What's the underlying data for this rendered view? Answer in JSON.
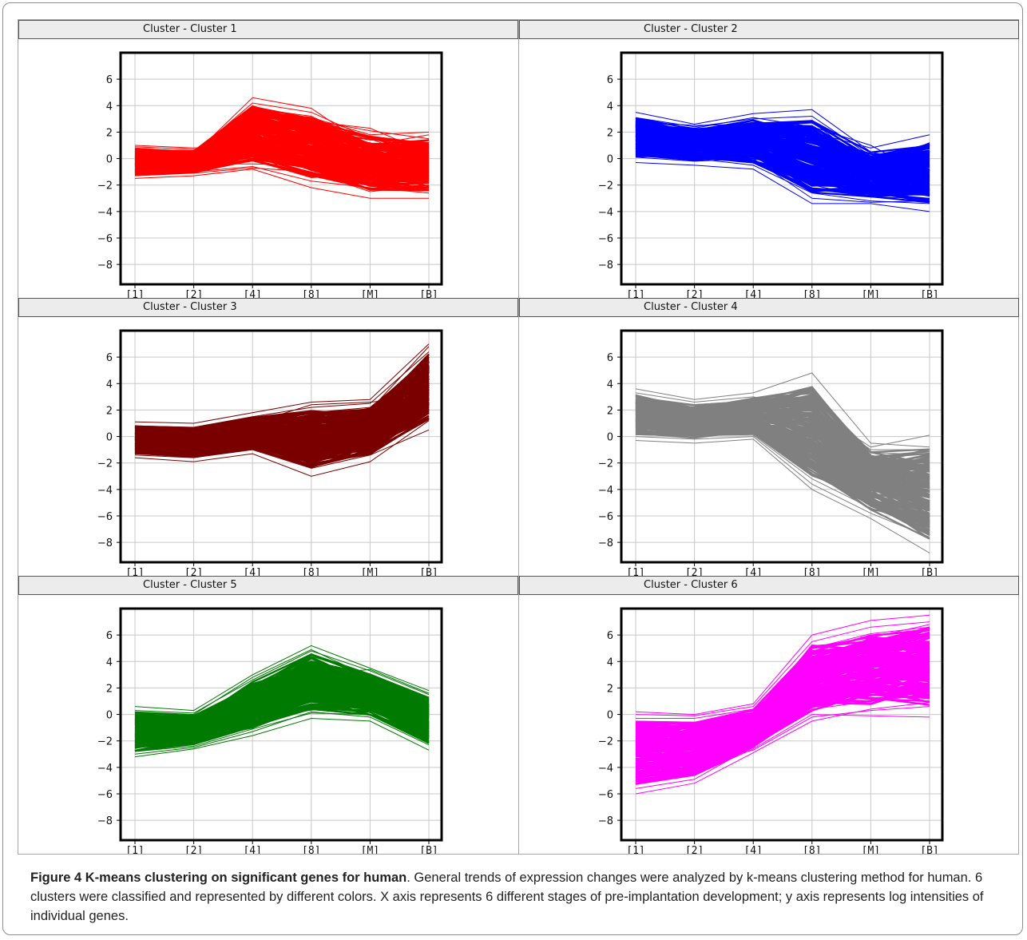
{
  "figure": {
    "caption_title": "Figure 4 K-means clustering on significant genes for human",
    "caption_text": ". General trends of expression changes were analyzed by k-means clustering method for human. 6 clusters were classified and represented by different colors. X axis represents 6 different stages of pre-implantation development; y axis represents log intensities of individual genes."
  },
  "chart_data": [
    {
      "type": "line",
      "title": "Cluster - Cluster 1",
      "color": "#ff0000",
      "x": [
        "[1]",
        "[2]",
        "[4]",
        "[8]",
        "[M]",
        "[B]"
      ],
      "ylim": [
        -9.5,
        8
      ],
      "yticks": [
        6,
        4,
        2,
        0,
        -2,
        -4,
        -6,
        -8
      ],
      "grid": true,
      "series_band": {
        "min": [
          -1.5,
          -1.3,
          -0.8,
          -2.2,
          -3.0,
          -3.0
        ],
        "max": [
          1.0,
          0.8,
          4.6,
          3.8,
          2.3,
          2.0
        ]
      },
      "series": [
        {
          "values": [
            0.5,
            0.3,
            4.6,
            3.8,
            0.8,
            0.2
          ]
        },
        {
          "values": [
            0.2,
            0.4,
            4.2,
            3.5,
            1.5,
            -0.2
          ]
        },
        {
          "values": [
            0.8,
            0.5,
            3.8,
            3.2,
            1.1,
            0.6
          ]
        },
        {
          "values": [
            -0.5,
            0.1,
            3.3,
            2.8,
            2.3,
            0.4
          ]
        },
        {
          "values": [
            0.0,
            0.2,
            3.0,
            3.1,
            1.8,
            2.0
          ]
        },
        {
          "values": [
            -1.0,
            -0.5,
            2.4,
            2.6,
            0.2,
            -0.8
          ]
        },
        {
          "values": [
            0.3,
            0.6,
            2.2,
            2.4,
            0.9,
            0.5
          ]
        },
        {
          "values": [
            -0.4,
            -0.2,
            1.9,
            2.1,
            -0.5,
            0.3
          ]
        },
        {
          "values": [
            0.6,
            0.4,
            1.6,
            1.8,
            1.2,
            -0.4
          ]
        },
        {
          "values": [
            -0.8,
            -0.6,
            1.2,
            1.4,
            -1.0,
            0.7
          ]
        },
        {
          "values": [
            0.1,
            0.0,
            0.8,
            1.0,
            0.4,
            -0.1
          ]
        },
        {
          "values": [
            -1.2,
            -0.9,
            0.4,
            0.7,
            -1.6,
            -1.2
          ]
        },
        {
          "values": [
            0.4,
            0.2,
            0.0,
            0.2,
            0.6,
            0.9
          ]
        },
        {
          "values": [
            -0.6,
            -0.4,
            -0.4,
            -0.5,
            -0.2,
            -0.6
          ]
        },
        {
          "values": [
            -1.5,
            -1.3,
            -0.8,
            -2.2,
            -3.0,
            -3.0
          ]
        },
        {
          "values": [
            -1.1,
            -1.0,
            -0.6,
            -1.7,
            -2.2,
            -2.6
          ]
        },
        {
          "values": [
            0.9,
            0.7,
            1.4,
            2.9,
            2.1,
            1.5
          ]
        },
        {
          "values": [
            -0.2,
            0.1,
            2.7,
            1.6,
            -1.3,
            -1.6
          ]
        },
        {
          "values": [
            1.0,
            0.8,
            1.0,
            0.5,
            1.0,
            1.8
          ]
        },
        {
          "values": [
            -1.3,
            -1.1,
            -0.7,
            -1.0,
            -2.5,
            -2.0
          ]
        }
      ]
    },
    {
      "type": "line",
      "title": "Cluster - Cluster 2",
      "color": "#0000ff",
      "x": [
        "[1]",
        "[2]",
        "[4]",
        "[8]",
        "[M]",
        "[B]"
      ],
      "ylim": [
        -9.5,
        8
      ],
      "yticks": [
        6,
        4,
        2,
        0,
        -2,
        -4,
        -6,
        -8
      ],
      "grid": true,
      "series_band": {
        "min": [
          -0.3,
          -0.5,
          -0.8,
          -3.4,
          -3.4,
          -4.0
        ],
        "max": [
          3.5,
          2.6,
          3.4,
          3.7,
          1.0,
          1.8
        ]
      },
      "series": [
        {
          "values": [
            3.5,
            2.6,
            3.4,
            3.7,
            0.5,
            -0.5
          ]
        },
        {
          "values": [
            3.1,
            2.4,
            3.0,
            3.2,
            0.2,
            0.8
          ]
        },
        {
          "values": [
            2.8,
            2.5,
            2.6,
            2.8,
            -0.6,
            1.2
          ]
        },
        {
          "values": [
            2.5,
            2.2,
            2.2,
            2.0,
            0.8,
            1.8
          ]
        },
        {
          "values": [
            2.2,
            2.0,
            1.8,
            1.4,
            -0.2,
            0.4
          ]
        },
        {
          "values": [
            2.0,
            1.7,
            2.4,
            1.0,
            -1.0,
            -0.6
          ]
        },
        {
          "values": [
            1.7,
            1.5,
            1.4,
            0.4,
            -1.4,
            -1.2
          ]
        },
        {
          "values": [
            1.4,
            1.2,
            1.0,
            -0.2,
            -1.8,
            -1.6
          ]
        },
        {
          "values": [
            1.1,
            0.9,
            0.6,
            -0.8,
            -2.2,
            -2.0
          ]
        },
        {
          "values": [
            0.8,
            0.6,
            0.2,
            -1.4,
            -2.6,
            -2.6
          ]
        },
        {
          "values": [
            0.5,
            0.3,
            -0.2,
            -2.0,
            -2.9,
            -3.0
          ]
        },
        {
          "values": [
            0.2,
            0.0,
            -0.5,
            -2.6,
            -3.2,
            -3.4
          ]
        },
        {
          "values": [
            -0.3,
            -0.5,
            -0.8,
            -3.4,
            -3.4,
            -4.0
          ]
        },
        {
          "values": [
            2.9,
            2.3,
            3.1,
            2.4,
            1.0,
            -1.4
          ]
        },
        {
          "values": [
            1.5,
            1.4,
            1.6,
            -1.2,
            -0.8,
            0.2
          ]
        },
        {
          "values": [
            0.1,
            -0.2,
            0.0,
            -3.0,
            -3.3,
            -3.2
          ]
        },
        {
          "values": [
            2.6,
            2.1,
            2.0,
            -0.4,
            -2.0,
            -0.8
          ]
        },
        {
          "values": [
            1.2,
            0.8,
            0.4,
            -1.8,
            -1.2,
            0.9
          ]
        }
      ]
    },
    {
      "type": "line",
      "title": "Cluster - Cluster 3",
      "color": "#7a0000",
      "x": [
        "[1]",
        "[2]",
        "[4]",
        "[8]",
        "[M]",
        "[B]"
      ],
      "ylim": [
        -9.5,
        8
      ],
      "yticks": [
        6,
        4,
        2,
        0,
        -2,
        -4,
        -6,
        -8
      ],
      "grid": true,
      "series_band": {
        "min": [
          -1.6,
          -1.9,
          -1.3,
          -3.0,
          -1.9,
          0.5
        ],
        "max": [
          1.1,
          1.0,
          1.8,
          2.6,
          2.8,
          7.0
        ]
      },
      "series": [
        {
          "values": [
            1.1,
            1.0,
            1.8,
            2.6,
            2.8,
            7.0
          ]
        },
        {
          "values": [
            0.8,
            0.7,
            1.5,
            2.2,
            2.5,
            6.4
          ]
        },
        {
          "values": [
            0.5,
            0.5,
            1.2,
            1.8,
            2.2,
            5.8
          ]
        },
        {
          "values": [
            0.2,
            0.2,
            0.9,
            1.4,
            1.9,
            5.2
          ]
        },
        {
          "values": [
            -0.1,
            0.0,
            0.6,
            1.0,
            1.6,
            4.6
          ]
        },
        {
          "values": [
            -0.4,
            -0.3,
            0.3,
            0.6,
            1.3,
            4.0
          ]
        },
        {
          "values": [
            -0.7,
            -0.6,
            0.0,
            0.2,
            1.0,
            3.4
          ]
        },
        {
          "values": [
            -1.0,
            -0.9,
            -0.3,
            -0.4,
            0.6,
            2.8
          ]
        },
        {
          "values": [
            -1.3,
            -1.3,
            -0.7,
            -1.2,
            0.2,
            2.0
          ]
        },
        {
          "values": [
            -1.6,
            -1.9,
            -1.3,
            -3.0,
            -1.9,
            1.2
          ]
        },
        {
          "values": [
            -1.4,
            -1.6,
            -1.0,
            -2.4,
            -1.4,
            0.5
          ]
        },
        {
          "values": [
            0.0,
            0.3,
            1.0,
            2.4,
            2.6,
            3.0
          ]
        },
        {
          "values": [
            0.6,
            0.4,
            0.0,
            -1.0,
            -1.0,
            5.6
          ]
        },
        {
          "values": [
            -0.8,
            -0.5,
            1.4,
            0.8,
            2.0,
            6.8
          ]
        }
      ]
    },
    {
      "type": "line",
      "title": "Cluster - Cluster 4",
      "color": "#808080",
      "x": [
        "[1]",
        "[2]",
        "[4]",
        "[8]",
        "[M]",
        "[B]"
      ],
      "ylim": [
        -9.5,
        8
      ],
      "yticks": [
        6,
        4,
        2,
        0,
        -2,
        -4,
        -6,
        -8
      ],
      "grid": true,
      "series_band": {
        "min": [
          -0.3,
          -0.5,
          -0.2,
          -4.0,
          -6.2,
          -8.8
        ],
        "max": [
          3.6,
          2.8,
          3.3,
          4.8,
          -0.5,
          0.1
        ]
      },
      "series": [
        {
          "values": [
            3.6,
            2.8,
            3.3,
            4.8,
            -0.5,
            -0.8
          ]
        },
        {
          "values": [
            3.3,
            2.6,
            3.0,
            2.1,
            -0.8,
            0.1
          ]
        },
        {
          "values": [
            3.0,
            2.4,
            2.7,
            1.4,
            -1.2,
            -1.4
          ]
        },
        {
          "values": [
            2.6,
            2.1,
            2.4,
            0.6,
            -1.8,
            -2.2
          ]
        },
        {
          "values": [
            2.2,
            1.8,
            2.0,
            -0.2,
            -2.4,
            -3.0
          ]
        },
        {
          "values": [
            1.8,
            1.5,
            1.6,
            -0.8,
            -3.0,
            -3.8
          ]
        },
        {
          "values": [
            1.4,
            1.2,
            1.2,
            -1.4,
            -3.6,
            -4.6
          ]
        },
        {
          "values": [
            1.0,
            0.9,
            0.8,
            -2.0,
            -4.2,
            -5.4
          ]
        },
        {
          "values": [
            0.6,
            0.5,
            0.5,
            -2.6,
            -4.8,
            -6.2
          ]
        },
        {
          "values": [
            0.2,
            0.1,
            0.1,
            -3.2,
            -5.4,
            -7.0
          ]
        },
        {
          "values": [
            -0.3,
            -0.5,
            -0.2,
            -4.0,
            -6.2,
            -8.8
          ]
        },
        {
          "values": [
            0.0,
            -0.2,
            0.0,
            -3.6,
            -5.8,
            -7.6
          ]
        },
        {
          "values": [
            2.0,
            1.4,
            2.6,
            2.0,
            -1.0,
            -1.0
          ]
        },
        {
          "values": [
            1.2,
            0.7,
            1.4,
            -1.0,
            -2.8,
            -5.8
          ]
        }
      ]
    },
    {
      "type": "line",
      "title": "Cluster - Cluster 5",
      "color": "#007a00",
      "x": [
        "[1]",
        "[2]",
        "[4]",
        "[8]",
        "[M]",
        "[B]"
      ],
      "ylim": [
        -9.5,
        8
      ],
      "yticks": [
        6,
        4,
        2,
        0,
        -2,
        -4,
        -6,
        -8
      ],
      "grid": true,
      "series_band": {
        "min": [
          -3.2,
          -2.6,
          -1.6,
          -0.3,
          -0.5,
          -2.7
        ],
        "max": [
          0.6,
          0.3,
          3.0,
          5.2,
          3.5,
          1.8
        ]
      },
      "series": [
        {
          "values": [
            0.6,
            0.3,
            3.0,
            5.2,
            3.5,
            1.8
          ]
        },
        {
          "values": [
            0.3,
            0.1,
            2.6,
            4.8,
            3.3,
            1.5
          ]
        },
        {
          "values": [
            0.0,
            -0.2,
            2.2,
            4.4,
            3.0,
            1.2
          ]
        },
        {
          "values": [
            -0.4,
            -0.5,
            1.8,
            3.9,
            2.6,
            0.9
          ]
        },
        {
          "values": [
            -0.8,
            -0.9,
            1.4,
            3.4,
            2.2,
            0.5
          ]
        },
        {
          "values": [
            -1.2,
            -1.3,
            1.0,
            2.8,
            1.8,
            0.1
          ]
        },
        {
          "values": [
            -1.6,
            -1.6,
            0.5,
            2.1,
            1.3,
            -0.3
          ]
        },
        {
          "values": [
            -2.0,
            -1.9,
            0.0,
            1.4,
            0.9,
            -0.8
          ]
        },
        {
          "values": [
            -2.4,
            -2.2,
            -0.6,
            0.7,
            0.4,
            -1.3
          ]
        },
        {
          "values": [
            -2.8,
            -2.4,
            -1.1,
            0.1,
            0.0,
            -1.9
          ]
        },
        {
          "values": [
            -3.2,
            -2.6,
            -1.6,
            -0.3,
            -0.5,
            -2.7
          ]
        },
        {
          "values": [
            -3.0,
            -2.5,
            -1.3,
            0.2,
            -0.2,
            -2.3
          ]
        },
        {
          "values": [
            0.2,
            0.0,
            2.8,
            4.9,
            2.8,
            -1.0
          ]
        },
        {
          "values": [
            -1.0,
            -1.1,
            0.8,
            3.0,
            3.4,
            1.6
          ]
        }
      ]
    },
    {
      "type": "line",
      "title": "Cluster - Cluster 6",
      "color": "#ff00ff",
      "x": [
        "[1]",
        "[2]",
        "[4]",
        "[8]",
        "[M]",
        "[B]"
      ],
      "ylim": [
        -9.5,
        8
      ],
      "yticks": [
        6,
        4,
        2,
        0,
        -2,
        -4,
        -6,
        -8
      ],
      "grid": true,
      "series_band": {
        "min": [
          -6.0,
          -5.2,
          -2.9,
          -0.5,
          -0.1,
          -0.2
        ],
        "max": [
          0.2,
          0.0,
          0.8,
          6.0,
          7.1,
          7.5
        ]
      },
      "series": [
        {
          "values": [
            0.2,
            0.0,
            0.8,
            6.0,
            7.1,
            7.5
          ]
        },
        {
          "values": [
            0.0,
            -0.1,
            0.6,
            5.5,
            6.6,
            7.0
          ]
        },
        {
          "values": [
            -0.3,
            -0.3,
            0.4,
            5.0,
            6.1,
            6.6
          ]
        },
        {
          "values": [
            -0.7,
            -0.6,
            0.1,
            4.4,
            5.5,
            6.0
          ]
        },
        {
          "values": [
            -1.1,
            -1.0,
            -0.3,
            3.8,
            4.8,
            5.4
          ]
        },
        {
          "values": [
            -1.5,
            -1.4,
            -0.7,
            3.2,
            4.1,
            4.8
          ]
        },
        {
          "values": [
            -2.0,
            -1.9,
            -1.1,
            2.5,
            3.4,
            4.0
          ]
        },
        {
          "values": [
            -2.5,
            -2.4,
            -1.5,
            1.8,
            2.6,
            3.2
          ]
        },
        {
          "values": [
            -3.0,
            -2.9,
            -1.9,
            1.1,
            1.8,
            2.4
          ]
        },
        {
          "values": [
            -3.5,
            -3.4,
            -2.3,
            0.4,
            1.0,
            1.5
          ]
        },
        {
          "values": [
            -3.8,
            -3.7,
            -2.7,
            -0.2,
            0.3,
            0.6
          ]
        },
        {
          "values": [
            -5.2,
            -4.6,
            -2.6,
            0.0,
            -0.1,
            -0.2
          ]
        },
        {
          "values": [
            -6.0,
            -5.2,
            -2.9,
            -0.5,
            0.4,
            0.9
          ]
        },
        {
          "values": [
            -5.6,
            -4.9,
            -2.4,
            1.5,
            5.8,
            6.8
          ]
        },
        {
          "values": [
            -2.2,
            -2.0,
            -0.9,
            4.8,
            3.0,
            5.9
          ]
        }
      ]
    }
  ]
}
